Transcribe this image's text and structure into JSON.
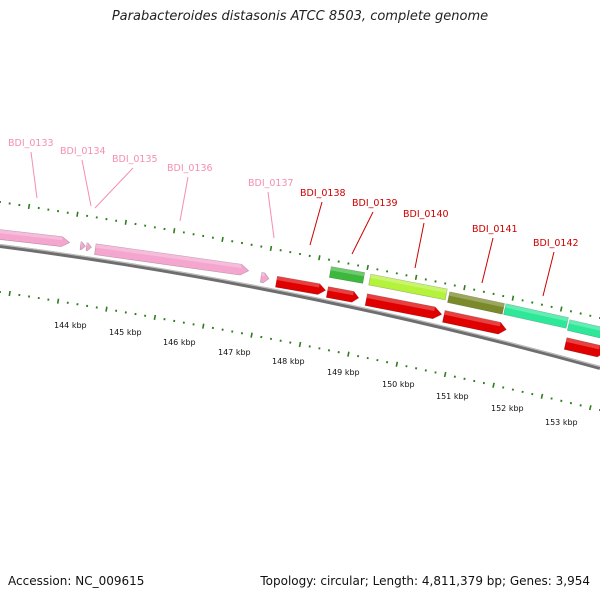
{
  "title": "Parabacteroides distasonis ATCC 8503, complete genome",
  "footer": {
    "accession": "Accession: NC_009615",
    "summary": "Topology: circular; Length: 4,811,379 bp; Genes: 3,954"
  },
  "colors": {
    "background": "#ffffff",
    "tick_green": "#2e7d1e",
    "backbone": "#8c8c8c",
    "label_pink": "#f48fb1",
    "label_red": "#cc0000"
  },
  "genes": [
    {
      "label": "BDI_0133",
      "color": "#f4a6cf",
      "label_color": "#f48fb1",
      "strand": "reverse"
    },
    {
      "label": "BDI_0134",
      "color": "#f4a6cf",
      "label_color": "#f48fb1",
      "strand": "reverse"
    },
    {
      "label": "BDI_0135",
      "color": "#f4a6cf",
      "label_color": "#f48fb1",
      "strand": "reverse"
    },
    {
      "label": "BDI_0136",
      "color": "#f4a6cf",
      "label_color": "#f48fb1",
      "strand": "reverse"
    },
    {
      "label": "BDI_0137",
      "color": "#f4a6cf",
      "label_color": "#f48fb1",
      "strand": "reverse"
    },
    {
      "label": "BDI_0138",
      "color": "#e00000",
      "label_color": "#cc0000",
      "strand": "reverse"
    },
    {
      "label": "BDI_0139",
      "color": "#e00000",
      "label_color": "#cc0000",
      "strand": "reverse"
    },
    {
      "label": "BDI_0140",
      "color": "#e00000",
      "label_color": "#cc0000",
      "strand": "reverse"
    },
    {
      "label": "BDI_0141",
      "color": "#e00000",
      "label_color": "#cc0000",
      "strand": "reverse"
    },
    {
      "label": "BDI_0142",
      "color": "#e00000",
      "label_color": "#cc0000",
      "strand": "reverse"
    }
  ],
  "feature_bands": [
    {
      "name": "green-feature",
      "color": "#3cb83c"
    },
    {
      "name": "lime-feature",
      "color": "#b5f23c"
    },
    {
      "name": "olive-feature",
      "color": "#7a8a2a"
    },
    {
      "name": "teal-feature-a",
      "color": "#2ee89a"
    },
    {
      "name": "teal-feature-b",
      "color": "#2ee89a"
    }
  ],
  "scale_labels": [
    "144 kbp",
    "145 kbp",
    "146 kbp",
    "147 kbp",
    "148 kbp",
    "149 kbp",
    "150 kbp",
    "151 kbp",
    "152 kbp",
    "153 kbp"
  ]
}
